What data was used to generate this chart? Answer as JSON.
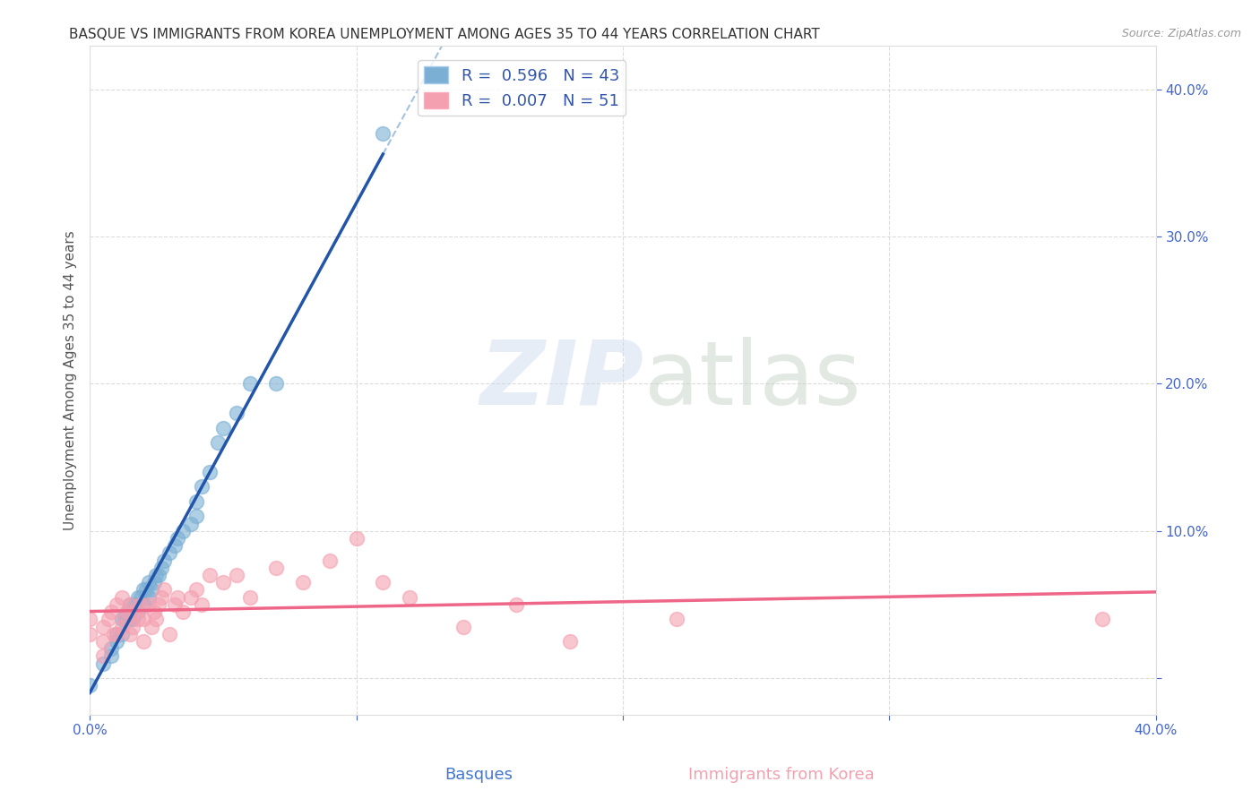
{
  "title": "BASQUE VS IMMIGRANTS FROM KOREA UNEMPLOYMENT AMONG AGES 35 TO 44 YEARS CORRELATION CHART",
  "source": "Source: ZipAtlas.com",
  "ylabel": "Unemployment Among Ages 35 to 44 years",
  "xlabel_basque": "Basques",
  "xlabel_korea": "Immigrants from Korea",
  "xmin": 0.0,
  "xmax": 0.4,
  "ymin": -0.025,
  "ymax": 0.43,
  "basque_R": 0.596,
  "basque_N": 43,
  "korea_R": 0.007,
  "korea_N": 51,
  "basque_color": "#7BAFD4",
  "korea_color": "#F4A0B0",
  "basque_line_color": "#2255AA",
  "korea_line_color": "#EE6688",
  "dashed_line_color": "#99BBDD",
  "basque_scatter_x": [
    0.0,
    0.005,
    0.008,
    0.008,
    0.01,
    0.01,
    0.012,
    0.012,
    0.013,
    0.014,
    0.015,
    0.015,
    0.016,
    0.017,
    0.018,
    0.018,
    0.019,
    0.02,
    0.02,
    0.021,
    0.022,
    0.022,
    0.023,
    0.024,
    0.025,
    0.026,
    0.027,
    0.028,
    0.03,
    0.032,
    0.033,
    0.035,
    0.038,
    0.04,
    0.04,
    0.042,
    0.045,
    0.048,
    0.05,
    0.055,
    0.06,
    0.07,
    0.11
  ],
  "basque_scatter_y": [
    -0.005,
    0.01,
    0.015,
    0.02,
    0.025,
    0.03,
    0.03,
    0.04,
    0.04,
    0.045,
    0.04,
    0.05,
    0.04,
    0.05,
    0.045,
    0.055,
    0.055,
    0.05,
    0.06,
    0.06,
    0.055,
    0.065,
    0.06,
    0.065,
    0.07,
    0.07,
    0.075,
    0.08,
    0.085,
    0.09,
    0.095,
    0.1,
    0.105,
    0.11,
    0.12,
    0.13,
    0.14,
    0.16,
    0.17,
    0.18,
    0.2,
    0.2,
    0.37
  ],
  "korea_scatter_x": [
    0.0,
    0.0,
    0.005,
    0.005,
    0.005,
    0.007,
    0.008,
    0.009,
    0.01,
    0.01,
    0.012,
    0.012,
    0.013,
    0.014,
    0.015,
    0.015,
    0.016,
    0.017,
    0.018,
    0.019,
    0.02,
    0.02,
    0.022,
    0.023,
    0.024,
    0.025,
    0.026,
    0.027,
    0.028,
    0.03,
    0.032,
    0.033,
    0.035,
    0.038,
    0.04,
    0.042,
    0.045,
    0.05,
    0.055,
    0.06,
    0.07,
    0.08,
    0.09,
    0.1,
    0.11,
    0.12,
    0.14,
    0.16,
    0.18,
    0.22,
    0.38
  ],
  "korea_scatter_y": [
    0.03,
    0.04,
    0.015,
    0.025,
    0.035,
    0.04,
    0.045,
    0.03,
    0.03,
    0.05,
    0.035,
    0.055,
    0.04,
    0.045,
    0.03,
    0.05,
    0.035,
    0.045,
    0.04,
    0.05,
    0.025,
    0.04,
    0.05,
    0.035,
    0.045,
    0.04,
    0.05,
    0.055,
    0.06,
    0.03,
    0.05,
    0.055,
    0.045,
    0.055,
    0.06,
    0.05,
    0.07,
    0.065,
    0.07,
    0.055,
    0.075,
    0.065,
    0.08,
    0.095,
    0.065,
    0.055,
    0.035,
    0.05,
    0.025,
    0.04,
    0.04
  ],
  "background_color": "#FFFFFF",
  "grid_color": "#CCCCCC",
  "title_fontsize": 11,
  "axis_label_fontsize": 11,
  "tick_fontsize": 11,
  "legend_fontsize": 13
}
